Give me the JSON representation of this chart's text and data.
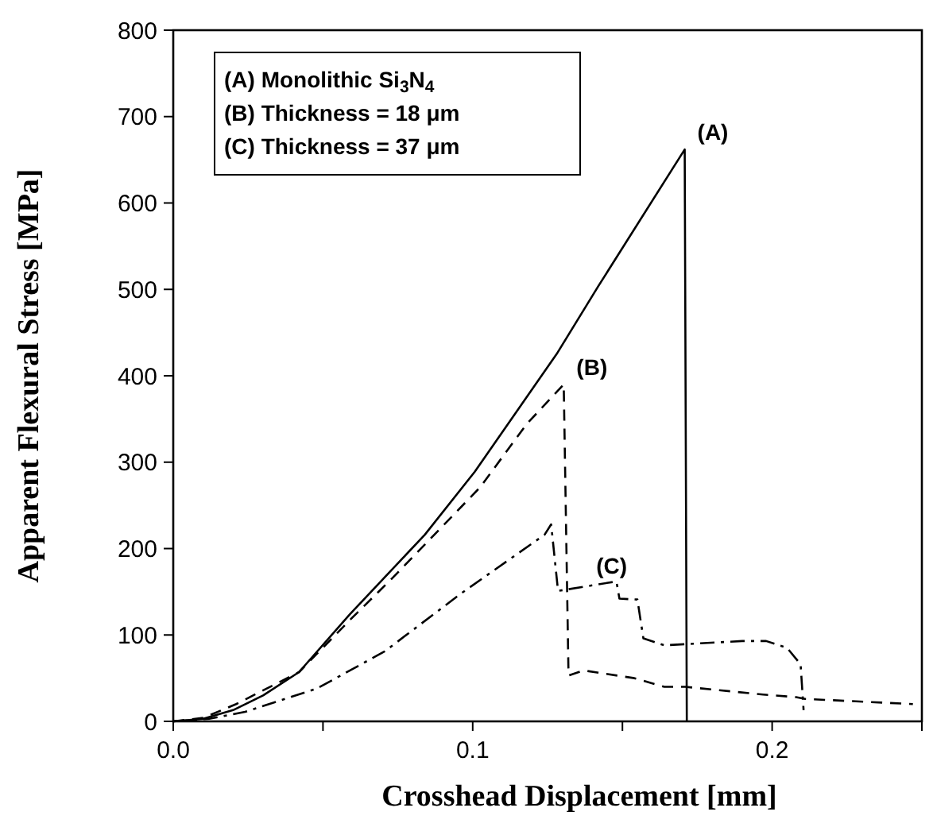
{
  "chart_data": {
    "type": "line",
    "xlabel": "Crosshead Displacement [mm]",
    "ylabel": "Apparent Flexural Stress [MPa]",
    "xlim": [
      0,
      0.25
    ],
    "ylim": [
      0,
      800
    ],
    "xticks": [
      {
        "value": 0,
        "label": "0.0"
      },
      {
        "value": 0.05,
        "label": null
      },
      {
        "value": 0.1,
        "label": "0.1"
      },
      {
        "value": 0.15,
        "label": null
      },
      {
        "value": 0.2,
        "label": "0.2"
      },
      {
        "value": 0.25,
        "label": null
      }
    ],
    "yticks": [
      0,
      100,
      200,
      300,
      400,
      500,
      600,
      700,
      800
    ],
    "grid": false,
    "marker": "none",
    "annotations": [
      "(A) Monolithic Si$_{3}$N$_{4}$",
      "(B) Thickness = 18 μm",
      "(C) Thickness = 37 μm",
      {
        "text": "(A)",
        "x": 0.1708,
        "y": 662
      },
      {
        "text": "(B)",
        "x": 0.1304,
        "y": 390
      },
      {
        "text": "(C)",
        "x": 0.137,
        "y": 160
      }
    ],
    "series": [
      {
        "color": "#000000",
        "line_style": "solid",
        "x": [
          0,
          0.01,
          0.02,
          0.03,
          0.042,
          0.059,
          0.084,
          0.1007,
          0.128,
          0.142,
          0.1708,
          0.1715
        ],
        "values": [
          0,
          3,
          13,
          30,
          57,
          124,
          216,
          289,
          425,
          504,
          662,
          0
        ]
      },
      {
        "color": "#000000",
        "line_style": "dashed",
        "x": [
          0,
          0.01,
          0.021,
          0.042,
          0.0592,
          0.0735,
          0.1025,
          0.118,
          0.1304,
          0.132,
          0.137,
          0.154,
          0.164,
          0.171,
          0.197,
          0.208,
          0.211,
          0.247
        ],
        "values": [
          0,
          4,
          20,
          57,
          118,
          167,
          271,
          344,
          390,
          53,
          59,
          50,
          40,
          40,
          31,
          28,
          26,
          20
        ]
      },
      {
        "color": "#000000",
        "line_style": "dashdot",
        "x": [
          0,
          0.012,
          0.024,
          0.048,
          0.0706,
          0.0965,
          0.124,
          0.1262,
          0.1285,
          0.148,
          0.149,
          0.155,
          0.157,
          0.164,
          0.19,
          0.198,
          0.205,
          0.2095,
          0.2105
        ],
        "values": [
          0,
          3,
          11,
          38,
          81,
          149,
          216,
          228,
          151,
          162,
          142,
          141,
          96,
          88,
          93,
          93,
          85,
          66,
          13
        ]
      }
    ]
  }
}
